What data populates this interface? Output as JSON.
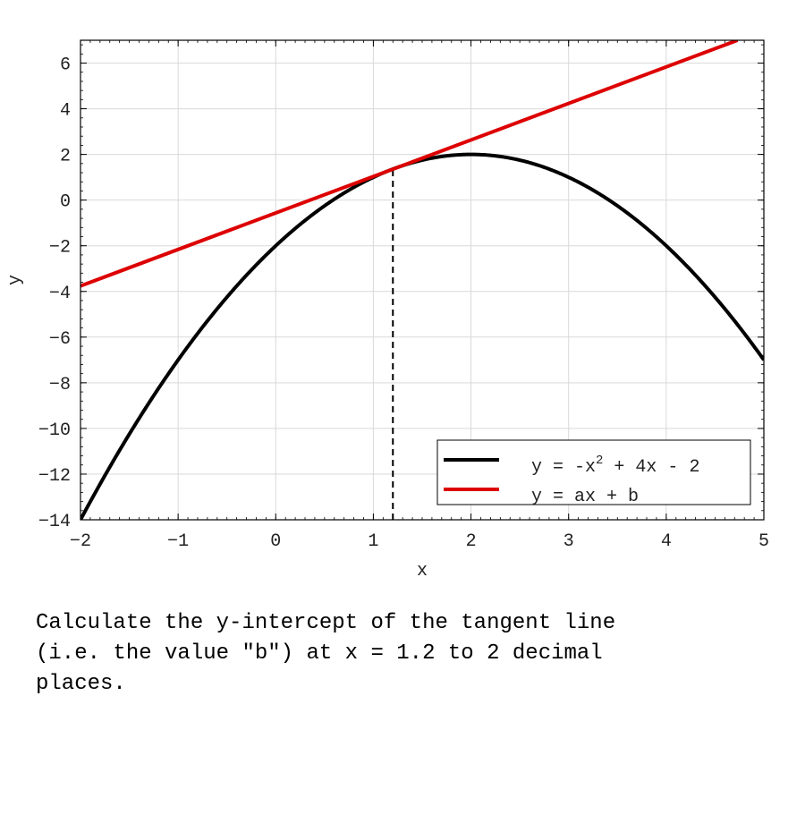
{
  "chart_data": {
    "type": "line",
    "title": "",
    "xlabel": "x",
    "ylabel": "y",
    "xlim": [
      -2,
      5
    ],
    "ylim": [
      -14,
      7
    ],
    "grid": true,
    "x_ticks": [
      -2,
      -1,
      0,
      1,
      2,
      3,
      4,
      5
    ],
    "y_ticks": [
      -14,
      -12,
      -10,
      -8,
      -6,
      -4,
      -2,
      0,
      2,
      4,
      6
    ],
    "series": [
      {
        "name_parts": [
          "y = -x",
          "2",
          " + 4x - 2"
        ],
        "color": "#000000",
        "function": "y = -x^2 + 4x - 2",
        "x": [
          -2,
          -1.5,
          -1,
          -0.5,
          0,
          0.5,
          1,
          1.2,
          1.5,
          2,
          2.5,
          3,
          3.5,
          4,
          4.5,
          5
        ],
        "y": [
          -14,
          -10.25,
          -7,
          -4.25,
          -2,
          -0.25,
          1,
          1.36,
          1.75,
          2,
          1.75,
          1,
          -0.25,
          -2,
          -4.25,
          -7
        ]
      },
      {
        "name": "y = ax + b",
        "color": "#dd0000",
        "x": [
          -2,
          4.73
        ],
        "y": [
          -3.76,
          7
        ]
      }
    ],
    "annotations": [
      {
        "type": "vertical-dashed",
        "x": 1.2,
        "y_from": -14,
        "y_to": 1.36
      }
    ],
    "legend_position": "bottom-right"
  },
  "question": {
    "lines": [
      "Calculate the y-intercept of the tangent line",
      "(i.e. the value \"b\") at x = 1.2 to 2 decimal",
      "places."
    ]
  }
}
